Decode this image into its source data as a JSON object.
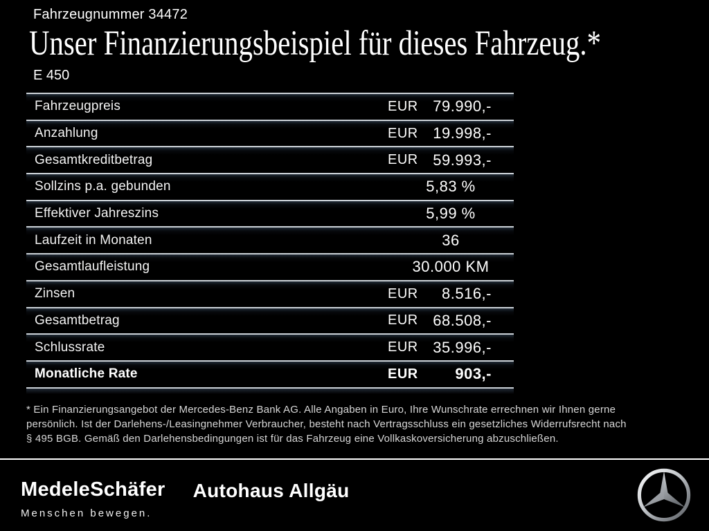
{
  "header": {
    "vehicle_number": "Fahrzeugnummer 34472",
    "title": "Unser Finanzierungsbeispiel für dieses Fahrzeug.*",
    "model": "E 450"
  },
  "table": {
    "rows": [
      {
        "label": "Fahrzeugpreis",
        "currency": "EUR",
        "value": "79.990,-",
        "emphasis": false
      },
      {
        "label": "Anzahlung",
        "currency": "EUR",
        "value": "19.998,-",
        "emphasis": false
      },
      {
        "label": "Gesamtkreditbetrag",
        "currency": "EUR",
        "value": "59.993,-",
        "emphasis": false
      },
      {
        "label": "Sollzins p.a. gebunden",
        "currency": "",
        "value": "5,83 %",
        "emphasis": false
      },
      {
        "label": "Effektiver Jahreszins",
        "currency": "",
        "value": "5,99 %",
        "emphasis": false
      },
      {
        "label": "Laufzeit in Monaten",
        "currency": "",
        "value": "36",
        "emphasis": false
      },
      {
        "label": "Gesamtlaufleistung",
        "currency": "",
        "value": "30.000 KM",
        "emphasis": false
      },
      {
        "label": "Zinsen",
        "currency": "EUR",
        "value": "8.516,-",
        "emphasis": false
      },
      {
        "label": "Gesamtbetrag",
        "currency": "EUR",
        "value": "68.508,-",
        "emphasis": false
      },
      {
        "label": "Schlussrate",
        "currency": "EUR",
        "value": "35.996,-",
        "emphasis": false
      },
      {
        "label": "Monatliche Rate",
        "currency": "EUR",
        "value": "903,-",
        "emphasis": true
      }
    ]
  },
  "footnote": {
    "lines": [
      "* Ein Finanzierungsangebot der Mercedes-Benz Bank AG. Alle Angaben in Euro, Ihre Wunschrate errechnen wir Ihnen gerne",
      "persönlich. Ist der Darlehens-/Leasingnehmer Verbraucher, besteht nach Vertragsschluss ein gesetzliches Widerrufsrecht nach",
      "§ 495 BGB. Gemäß den Darlehensbedingungen ist für das Fahrzeug eine Vollkaskoversicherung abzuschließen."
    ]
  },
  "footer": {
    "dealer_logo_1": "MedeleSchäfer",
    "dealer_tagline": "Menschen bewegen.",
    "dealer_logo_2": "Autohaus Allgäu",
    "brand_logo": "mercedes-benz-star-icon"
  },
  "colors": {
    "background": "#000000",
    "text": "#ffffff",
    "footnote_text": "#d8d8d8",
    "separator_light": "#eef1f3",
    "separator_shadow": "#3e5066",
    "star_silver_light": "#fbfbfb",
    "star_silver_dark": "#5f6367"
  }
}
